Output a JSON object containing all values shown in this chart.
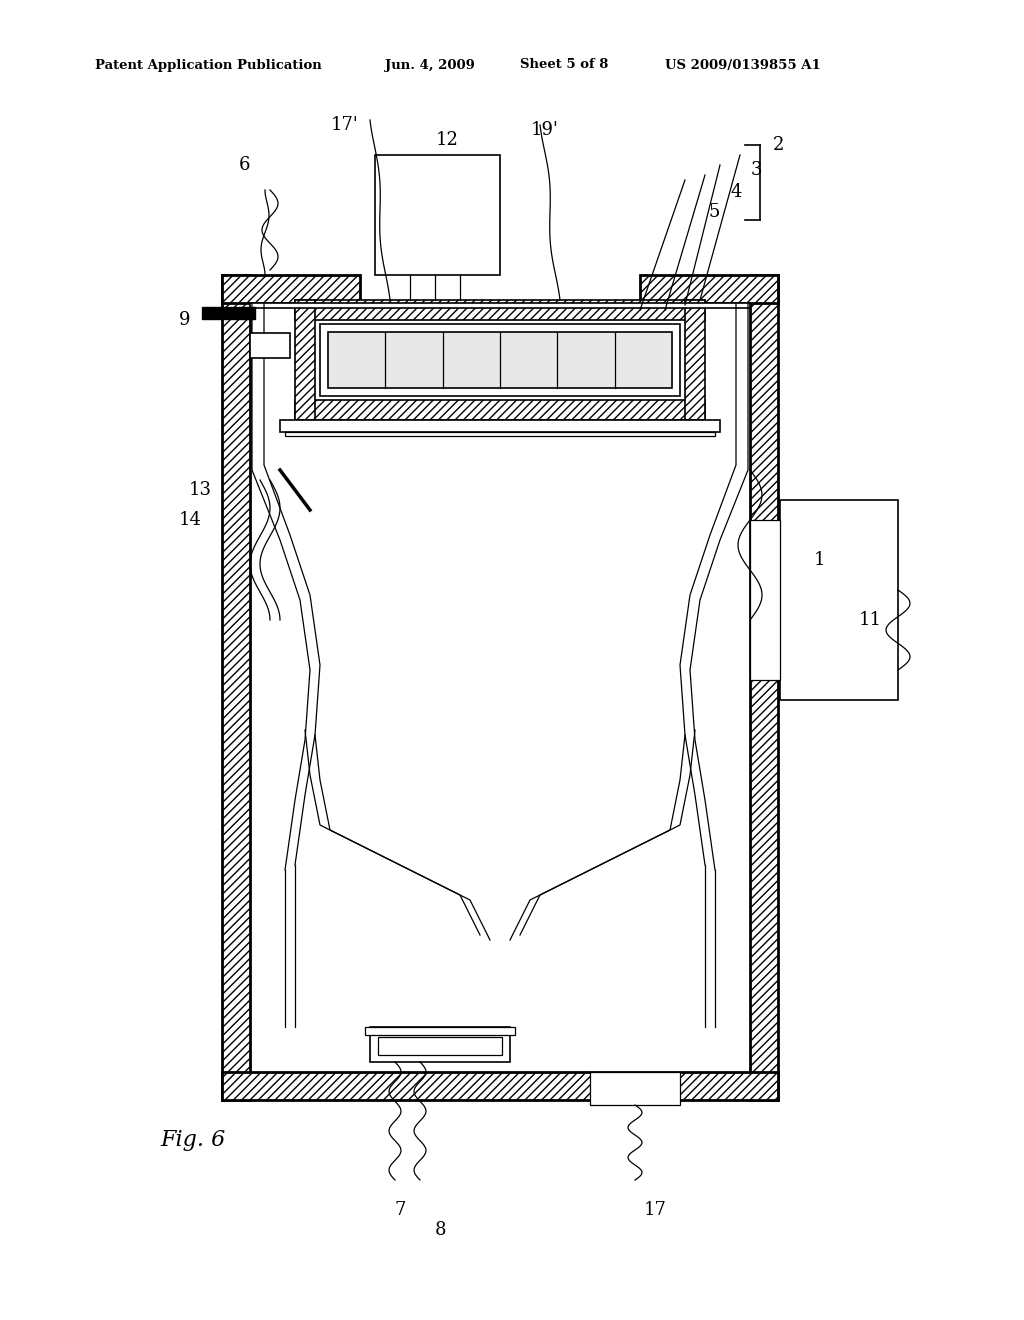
{
  "background_color": "#ffffff",
  "header_text": "Patent Application Publication",
  "header_date": "Jun. 4, 2009",
  "header_sheet": "Sheet 5 of 8",
  "header_patent": "US 2009/0139855 A1",
  "figure_label": "Fig. 6"
}
